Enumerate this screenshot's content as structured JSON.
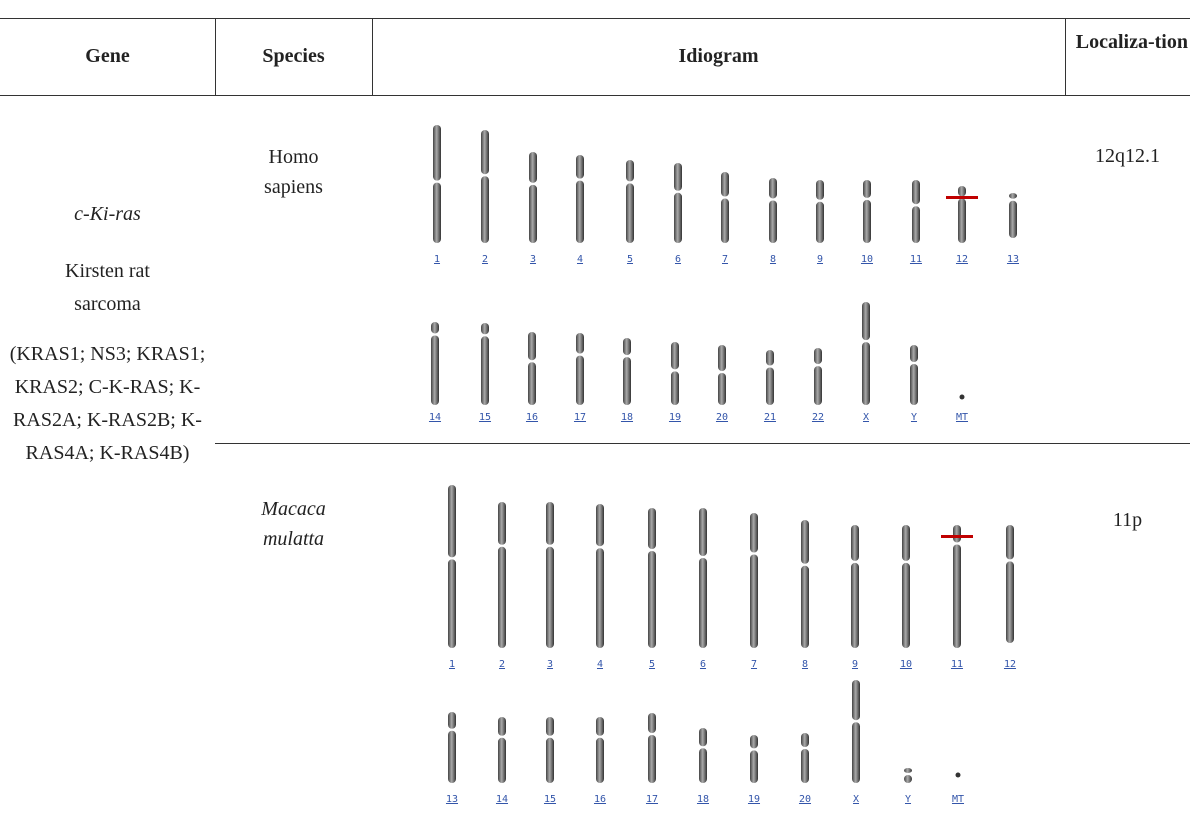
{
  "table": {
    "columns": [
      "Gene",
      "Species",
      "Idiogram",
      "Localiza-tion"
    ],
    "gene": {
      "symbol": "c-Ki-ras",
      "name": "Kirsten rat sarcoma",
      "aliases": "(KRAS1; NS3; KRAS1; KRAS2; C-K-RAS; K-RAS2A; K-RAS2B; K-RAS4A; K-RAS4B)"
    },
    "rows": [
      {
        "species": "Homo sapiens",
        "localization": "12q12.1",
        "idiogram": {
          "row1": [
            "1",
            "2",
            "3",
            "4",
            "5",
            "6",
            "7",
            "8",
            "9",
            "10",
            "11",
            "12",
            "13"
          ],
          "row2": [
            "14",
            "15",
            "16",
            "17",
            "18",
            "19",
            "20",
            "21",
            "22",
            "X",
            "Y",
            "MT"
          ]
        }
      },
      {
        "species": "Macaca mulatta",
        "localization": "11p",
        "idiogram": {
          "row1": [
            "1",
            "2",
            "3",
            "4",
            "5",
            "6",
            "7",
            "8",
            "9",
            "10",
            "11",
            "12"
          ],
          "row2": [
            "13",
            "14",
            "15",
            "16",
            "17",
            "18",
            "19",
            "20",
            "X",
            "Y",
            "MT"
          ]
        }
      }
    ]
  }
}
